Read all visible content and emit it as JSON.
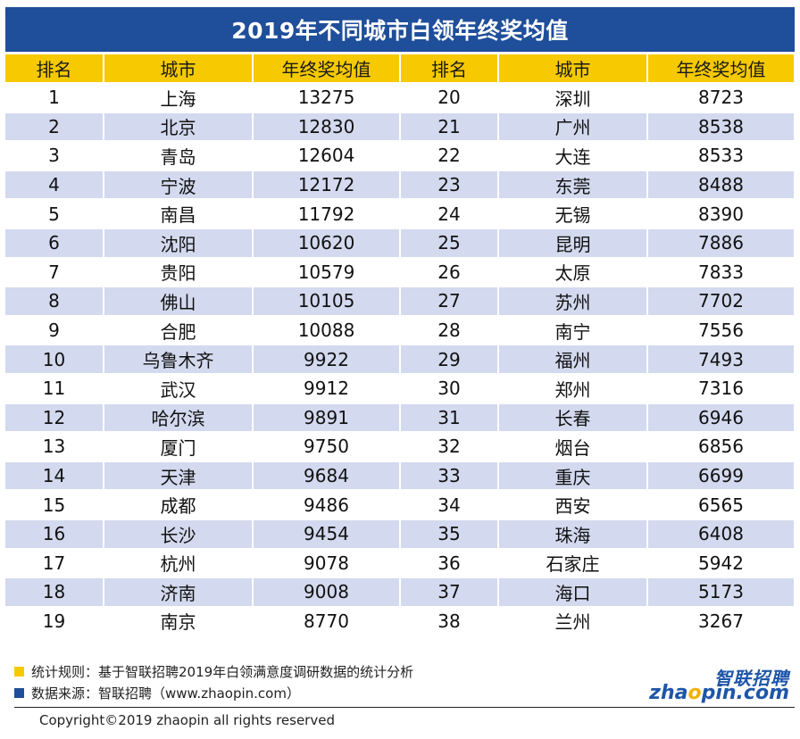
{
  "title": "2019年不同城市白领年终奖均值",
  "headers": [
    "排名",
    "城市",
    "年终奖均值",
    "排名",
    "城市",
    "年终奖均值"
  ],
  "colors": {
    "title_bg": "#1f4e9a",
    "header_bg": "#f6c900",
    "stripe": "#d3d9ee",
    "note_yellow": "#f6c900",
    "note_blue": "#1f4e9a"
  },
  "chart_data": {
    "type": "table",
    "columns": [
      "排名",
      "城市",
      "年终奖均值"
    ],
    "rows": [
      [
        1,
        "上海",
        13275
      ],
      [
        2,
        "北京",
        12830
      ],
      [
        3,
        "青岛",
        12604
      ],
      [
        4,
        "宁波",
        12172
      ],
      [
        5,
        "南昌",
        11792
      ],
      [
        6,
        "沈阳",
        10620
      ],
      [
        7,
        "贵阳",
        10579
      ],
      [
        8,
        "佛山",
        10105
      ],
      [
        9,
        "合肥",
        10088
      ],
      [
        10,
        "乌鲁木齐",
        9922
      ],
      [
        11,
        "武汉",
        9912
      ],
      [
        12,
        "哈尔滨",
        9891
      ],
      [
        13,
        "厦门",
        9750
      ],
      [
        14,
        "天津",
        9684
      ],
      [
        15,
        "成都",
        9486
      ],
      [
        16,
        "长沙",
        9454
      ],
      [
        17,
        "杭州",
        9078
      ],
      [
        18,
        "济南",
        9008
      ],
      [
        19,
        "南京",
        8770
      ],
      [
        20,
        "深圳",
        8723
      ],
      [
        21,
        "广州",
        8538
      ],
      [
        22,
        "大连",
        8533
      ],
      [
        23,
        "东莞",
        8488
      ],
      [
        24,
        "无锡",
        8390
      ],
      [
        25,
        "昆明",
        7886
      ],
      [
        26,
        "太原",
        7833
      ],
      [
        27,
        "苏州",
        7702
      ],
      [
        28,
        "南宁",
        7556
      ],
      [
        29,
        "福州",
        7493
      ],
      [
        30,
        "郑州",
        7316
      ],
      [
        31,
        "长春",
        6946
      ],
      [
        32,
        "烟台",
        6856
      ],
      [
        33,
        "重庆",
        6699
      ],
      [
        34,
        "西安",
        6565
      ],
      [
        35,
        "珠海",
        6408
      ],
      [
        36,
        "石家庄",
        5942
      ],
      [
        37,
        "海口",
        5173
      ],
      [
        38,
        "兰州",
        3267
      ]
    ]
  },
  "notes": {
    "rule": "统计规则：基于智联招聘2019年白领满意度调研数据的统计分析",
    "source": "数据来源：智联招聘（www.zhaopin.com）"
  },
  "copyright": "Copyright©2019 zhaopin all rights reserved",
  "logo": {
    "cn": "智联招聘",
    "en_prefix": "zha",
    "en_o": "o",
    "en_suffix": "pin.com"
  }
}
